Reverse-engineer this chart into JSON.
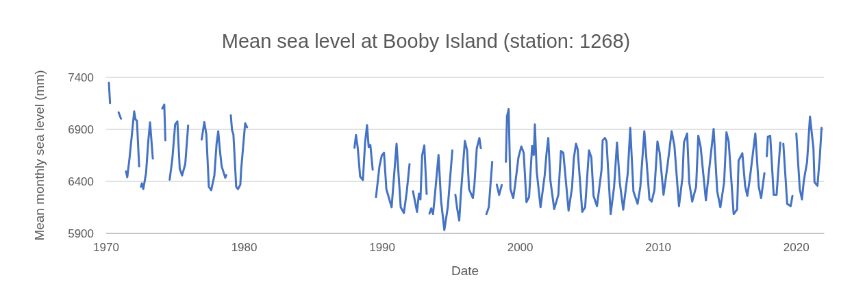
{
  "chart_data": {
    "type": "line",
    "title": "Mean sea level at Booby Island (station: 1268)",
    "xlabel": "Date",
    "ylabel": "Mean monthly sea level (mm)",
    "x": [
      1970.2,
      1970.28,
      1970.6,
      1970.9,
      1971.07,
      1971.25,
      1971.44,
      1971.53,
      1971.7,
      1972.03,
      1972.13,
      1972.23,
      1972.39,
      1972.45,
      1972.52,
      1972.59,
      1972.69,
      1972.89,
      1973.05,
      1973.18,
      1973.38,
      1973.7,
      1974.07,
      1974.21,
      1974.29,
      1974.45,
      1974.6,
      1974.79,
      1975.0,
      1975.16,
      1975.33,
      1975.5,
      1975.73,
      1975.94,
      1976.4,
      1976.92,
      1977.11,
      1977.26,
      1977.44,
      1977.61,
      1977.84,
      1978.0,
      1978.12,
      1978.25,
      1978.37,
      1978.63,
      1978.7,
      1978.86,
      1979.03,
      1979.12,
      1979.22,
      1979.42,
      1979.55,
      1979.72,
      1979.78,
      1980.07,
      1980.21,
      1984.0,
      1987.99,
      1988.1,
      1988.23,
      1988.4,
      1988.6,
      1988.76,
      1988.9,
      1989.02,
      1989.14,
      1989.31,
      1989.43,
      1989.55,
      1989.8,
      1989.97,
      1990.13,
      1990.3,
      1990.68,
      1991.04,
      1991.34,
      1991.57,
      1991.78,
      1991.98,
      1992.1,
      1992.23,
      1992.52,
      1992.66,
      1992.77,
      1992.89,
      1993.05,
      1993.22,
      1993.32,
      1993.42,
      1993.55,
      1993.68,
      1993.81,
      1994.08,
      1994.26,
      1994.5,
      1994.75,
      1995.08,
      1995.19,
      1995.3,
      1995.43,
      1995.58,
      1995.69,
      1995.86,
      1995.99,
      1996.15,
      1996.29,
      1996.57,
      1996.68,
      1996.85,
      1997.04,
      1997.14,
      1997.35,
      1997.55,
      1997.72,
      1997.97,
      1998.13,
      1998.3,
      1998.47,
      1998.66,
      1998.8,
      1998.96,
      1999.04,
      1999.16,
      1999.29,
      1999.49,
      1999.62,
      1999.87,
      2000.08,
      2000.25,
      2000.45,
      2000.64,
      2000.86,
      2000.98,
      2001.06,
      2001.19,
      2001.47,
      2001.77,
      2001.9,
      2002.03,
      2002.18,
      2002.46,
      2002.76,
      2002.95,
      2003.12,
      2003.5,
      2003.75,
      2003.88,
      2004.04,
      2004.16,
      2004.49,
      2004.7,
      2004.98,
      2005.15,
      2005.31,
      2005.56,
      2005.89,
      2005.97,
      2006.14,
      2006.25,
      2006.55,
      2006.8,
      2007.01,
      2007.21,
      2007.46,
      2007.79,
      2007.97,
      2008.2,
      2008.5,
      2008.7,
      2008.99,
      2009.36,
      2009.52,
      2009.72,
      2009.94,
      2010.1,
      2010.38,
      2010.68,
      2010.97,
      2011.17,
      2011.5,
      2011.75,
      2011.86,
      2012.09,
      2012.24,
      2012.46,
      2012.74,
      2012.9,
      2013.07,
      2013.45,
      2013.73,
      2014.01,
      2014.27,
      2014.5,
      2014.77,
      2014.94,
      2015.1,
      2015.46,
      2015.71,
      2015.82,
      2016.09,
      2016.29,
      2016.45,
      2016.62,
      2017.03,
      2017.28,
      2017.45,
      2017.69,
      2017.78,
      2017.86,
      2017.94,
      2018.11,
      2018.36,
      2018.57,
      2018.84,
      2018.95,
      2019.06,
      2019.34,
      2019.59,
      2019.72,
      2019.86,
      2020.0,
      2020.25,
      2020.41,
      2020.54,
      2020.78,
      2020.99,
      2021.24,
      2021.32,
      2021.53,
      2021.7,
      2021.83
    ],
    "series": [
      {
        "color": "#4472c4",
        "values": [
          7347,
          7151,
          null,
          7064,
          7003,
          null,
          6496,
          6440,
          6631,
          7072,
          6992,
          6985,
          6544,
          null,
          6348,
          6381,
          6326,
          6479,
          6784,
          6968,
          6620,
          null,
          7101,
          7138,
          6795,
          null,
          6417,
          6610,
          6948,
          6977,
          6522,
          6457,
          6566,
          6937,
          null,
          6802,
          6970,
          6850,
          6348,
          6315,
          6457,
          6762,
          6882,
          6686,
          6544,
          6435,
          6461,
          null,
          7035,
          6893,
          6850,
          6348,
          6326,
          6369,
          6512,
          6959,
          6920,
          null,
          6723,
          6846,
          6719,
          6446,
          6413,
          6774,
          6941,
          6730,
          6751,
          6512,
          null,
          6250,
          6544,
          6649,
          6675,
          6326,
          6151,
          6762,
          6151,
          6096,
          6304,
          6566,
          null,
          6304,
          6107,
          6282,
          6227,
          6649,
          6745,
          6278,
          null,
          6090,
          6140,
          6086,
          6260,
          6653,
          6217,
          5933,
          6151,
          6697,
          null,
          6271,
          6140,
          6024,
          6260,
          6566,
          6789,
          6697,
          6326,
          6239,
          6369,
          6719,
          6817,
          6719,
          null,
          6086,
          6151,
          6588,
          null,
          6369,
          6271,
          6365,
          null,
          6588,
          7024,
          7095,
          6326,
          6239,
          6358,
          6631,
          6736,
          6675,
          6200,
          6250,
          6741,
          6653,
          6948,
          6500,
          6151,
          6457,
          6664,
          6817,
          6413,
          6134,
          6271,
          6692,
          6675,
          6119,
          6337,
          6620,
          6762,
          6708,
          6107,
          6151,
          6697,
          6631,
          6260,
          6162,
          6512,
          6795,
          6817,
          6784,
          6086,
          6348,
          6774,
          6391,
          6129,
          6479,
          6915,
          6304,
          6184,
          6348,
          6882,
          6227,
          6206,
          6315,
          6784,
          6675,
          6271,
          6566,
          6882,
          6741,
          6162,
          6435,
          6774,
          6861,
          6391,
          6206,
          6348,
          6839,
          6730,
          6217,
          6566,
          6904,
          6304,
          6151,
          6391,
          6872,
          6784,
          6086,
          6129,
          6599,
          6671,
          6358,
          6260,
          6413,
          6861,
          6348,
          6239,
          6479,
          null,
          6642,
          6828,
          6839,
          6271,
          6271,
          6774,
          null,
          6762,
          6184,
          6162,
          6260,
          null,
          6861,
          6326,
          6227,
          6402,
          6588,
          7024,
          6719,
          6391,
          6358,
          6631,
          6915
        ]
      }
    ],
    "xlim": [
      1970,
      2022
    ],
    "xticks": [
      1970,
      1980,
      1990,
      2000,
      2010,
      2020
    ],
    "ylim": [
      5900,
      7400
    ],
    "yticks": [
      5900,
      6400,
      6900,
      7400
    ],
    "grid": "y",
    "marker": "none",
    "line_style": "solid"
  }
}
